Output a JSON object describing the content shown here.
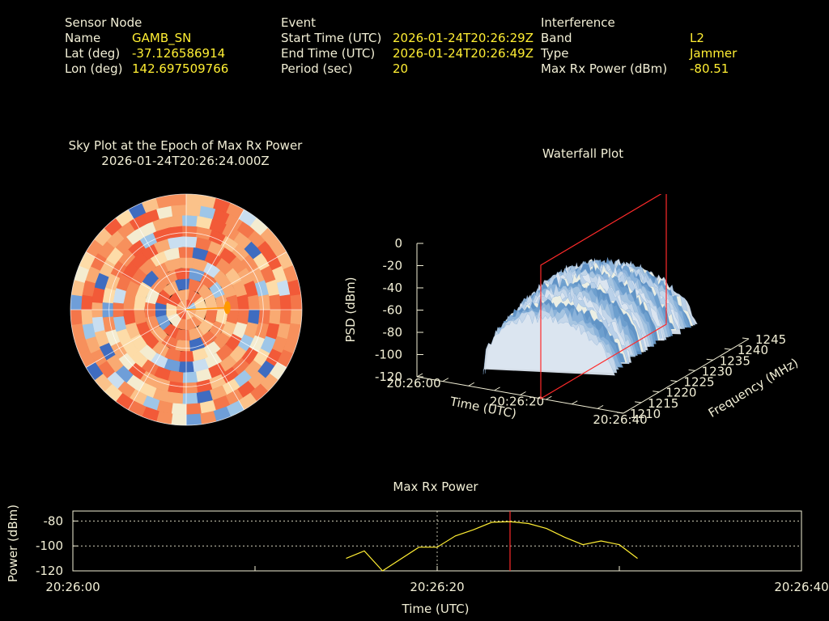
{
  "sensor": {
    "header": "Sensor Node",
    "rows": [
      {
        "label": "Name",
        "value": "GAMB_SN"
      },
      {
        "label": "Lat (deg)",
        "value": "-37.126586914"
      },
      {
        "label": "Lon (deg)",
        "value": "142.697509766"
      }
    ]
  },
  "event": {
    "header": "Event",
    "rows": [
      {
        "label": "Start Time (UTC)",
        "value": "2026-01-24T20:26:29Z"
      },
      {
        "label": "End Time (UTC)",
        "value": "2026-01-24T20:26:49Z"
      },
      {
        "label": "Period (sec)",
        "value": "20"
      }
    ]
  },
  "interference": {
    "header": "Interference",
    "rows": [
      {
        "label": "Band",
        "value": "L2"
      },
      {
        "label": "Type",
        "value": "Jammer"
      },
      {
        "label": "Max Rx Power (dBm)",
        "value": "-80.51"
      }
    ]
  },
  "colors": {
    "label": "#f2efd6",
    "value": "#ffee33",
    "line": "#ffee33",
    "marker": "#ff2a2a",
    "satellite": "#ff9900"
  },
  "chart_data": [
    {
      "type": "heatmap",
      "title": "Sky Plot at the Epoch of Max Rx Power",
      "subtitle": "2026-01-24T20:26:24.000Z",
      "projection": "polar",
      "grid": true,
      "marker": {
        "azimuth_deg": 87,
        "elevation_deg": 58
      }
    },
    {
      "type": "area",
      "title": "Waterfall Plot",
      "xlabel": "Time (UTC)",
      "ylabel": "Frequency (MHz)",
      "zlabel": "PSD (dBm)",
      "x_ticks": [
        "20:26:00",
        "20:26:20",
        "20:26:40"
      ],
      "y_ticks": [
        "1210",
        "1215",
        "1220",
        "1225",
        "1230",
        "1235",
        "1240",
        "1245"
      ],
      "z_ticks": [
        "0",
        "-20",
        "-40",
        "-60",
        "-80",
        "-100",
        "-120"
      ],
      "xlim_sec": [
        0,
        40
      ],
      "ylim": [
        1210,
        1245
      ],
      "zlim": [
        -120,
        0
      ],
      "band_mhz": [
        1217,
        1240
      ],
      "time_span_sec": [
        8,
        34
      ],
      "marker_time_sec": 24
    },
    {
      "type": "line",
      "title": "Max Rx Power",
      "xlabel": "Time (UTC)",
      "ylabel": "Power (dBm)",
      "x_ticks": [
        "20:26:00",
        "20:26:20",
        "20:26:40"
      ],
      "y_ticks": [
        "-80",
        "-100",
        "-120"
      ],
      "xlim_sec": [
        0,
        40
      ],
      "ylim": [
        -120,
        -72
      ],
      "grid": true,
      "marker_time_sec": 24,
      "series": [
        {
          "x": [
            15,
            16,
            17,
            19,
            20,
            21,
            22,
            23,
            24,
            25,
            26,
            27,
            28,
            29,
            30,
            31
          ],
          "y": [
            -110,
            -104,
            -121,
            -101,
            -101,
            -92,
            -87,
            -81,
            -80.5,
            -82,
            -86,
            -93,
            -99,
            -96,
            -99,
            -110
          ]
        }
      ]
    }
  ]
}
